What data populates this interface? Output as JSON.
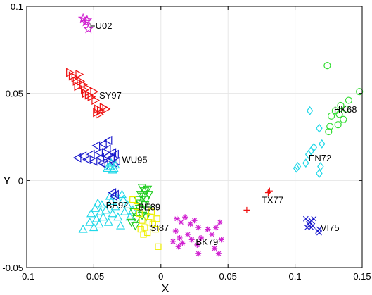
{
  "chart_data": {
    "type": "scatter",
    "title": "",
    "xlabel": "X",
    "ylabel": "Y",
    "xlim": [
      -0.1,
      0.15
    ],
    "ylim": [
      -0.05,
      0.1
    ],
    "xticks": [
      -0.1,
      -0.05,
      0,
      0.05,
      0.1,
      0.15
    ],
    "yticks": [
      -0.05,
      0,
      0.05,
      0.1
    ],
    "xtick_labels": [
      "-0.1",
      "-0.05",
      "0",
      "0.05",
      "0.1",
      "0.15"
    ],
    "ytick_labels": [
      "-0.05",
      "0",
      "0.05",
      "0.1"
    ],
    "grid": true,
    "clusters": [
      {
        "label": "FU02",
        "marker": "star",
        "color": "#d020d0",
        "label_at": [
          -0.053,
          0.089
        ],
        "points": [
          [
            -0.058,
            0.093
          ],
          [
            -0.055,
            0.092
          ],
          [
            -0.056,
            0.091
          ],
          [
            -0.054,
            0.087
          ]
        ]
      },
      {
        "label": "SY97",
        "marker": "triangle-right",
        "color": "#ee1111",
        "label_at": [
          -0.046,
          0.049
        ],
        "points": [
          [
            -0.068,
            0.062
          ],
          [
            -0.066,
            0.06
          ],
          [
            -0.064,
            0.059
          ],
          [
            -0.063,
            0.057
          ],
          [
            -0.061,
            0.061
          ],
          [
            -0.06,
            0.057
          ],
          [
            -0.058,
            0.055
          ],
          [
            -0.062,
            0.054
          ],
          [
            -0.057,
            0.052
          ],
          [
            -0.055,
            0.053
          ],
          [
            -0.056,
            0.05
          ],
          [
            -0.054,
            0.049
          ],
          [
            -0.052,
            0.048
          ],
          [
            -0.05,
            0.051
          ],
          [
            -0.049,
            0.046
          ],
          [
            -0.047,
            0.041
          ],
          [
            -0.045,
            0.04
          ],
          [
            -0.043,
            0.042
          ],
          [
            -0.048,
            0.039
          ],
          [
            -0.046,
            0.038
          ],
          [
            -0.041,
            0.041
          ]
        ]
      },
      {
        "label": "WU95",
        "marker": "triangle-left",
        "color": "#1a1acc",
        "label_at": [
          -0.029,
          0.012
        ],
        "points": [
          [
            -0.062,
            0.013
          ],
          [
            -0.058,
            0.014
          ],
          [
            -0.055,
            0.012
          ],
          [
            -0.052,
            0.015
          ],
          [
            -0.05,
            0.011
          ],
          [
            -0.048,
            0.02
          ],
          [
            -0.046,
            0.016
          ],
          [
            -0.045,
            0.013
          ],
          [
            -0.043,
            0.021
          ],
          [
            -0.042,
            0.009
          ],
          [
            -0.04,
            0.014
          ],
          [
            -0.039,
            0.023
          ],
          [
            -0.038,
            0.012
          ],
          [
            -0.036,
            0.016
          ],
          [
            -0.035,
            0.01
          ],
          [
            -0.034,
            0.015
          ],
          [
            -0.033,
            0.011
          ],
          [
            -0.04,
            0.018
          ],
          [
            -0.044,
            0.01
          ],
          [
            -0.037,
            0.013
          ]
        ]
      },
      {
        "label": "",
        "marker": "triangle-up",
        "color": "#22d8e8",
        "label_at": null,
        "points": [
          [
            -0.04,
            0.007
          ],
          [
            -0.038,
            0.008
          ],
          [
            -0.036,
            0.006
          ],
          [
            -0.034,
            0.009
          ],
          [
            -0.037,
            0.01
          ],
          [
            -0.035,
            0.007
          ]
        ]
      },
      {
        "label": "BE92",
        "marker": "triangle-up",
        "color": "#22d8e8",
        "label_at": [
          -0.041,
          -0.014
        ],
        "points": [
          [
            -0.058,
            -0.028
          ],
          [
            -0.053,
            -0.024
          ],
          [
            -0.05,
            -0.027
          ],
          [
            -0.048,
            -0.022
          ],
          [
            -0.046,
            -0.025
          ],
          [
            -0.052,
            -0.019
          ],
          [
            -0.049,
            -0.016
          ],
          [
            -0.047,
            -0.013
          ],
          [
            -0.045,
            -0.018
          ],
          [
            -0.043,
            -0.021
          ],
          [
            -0.041,
            -0.017
          ],
          [
            -0.039,
            -0.024
          ],
          [
            -0.037,
            -0.012
          ],
          [
            -0.036,
            -0.019
          ],
          [
            -0.034,
            -0.015
          ],
          [
            -0.032,
            -0.021
          ],
          [
            -0.03,
            -0.026
          ],
          [
            -0.028,
            -0.011
          ],
          [
            -0.027,
            -0.018
          ],
          [
            -0.025,
            -0.014
          ],
          [
            -0.023,
            -0.021
          ],
          [
            -0.021,
            -0.017
          ],
          [
            -0.044,
            -0.014
          ],
          [
            -0.033,
            -0.01
          ],
          [
            -0.038,
            -0.009
          ],
          [
            -0.029,
            -0.008
          ]
        ]
      },
      {
        "label": "",
        "marker": "triangle-left",
        "color": "#1a1acc",
        "label_at": null,
        "points": [
          [
            -0.036,
            -0.007
          ],
          [
            -0.035,
            -0.009
          ],
          [
            -0.034,
            -0.008
          ]
        ]
      },
      {
        "label": "BE89",
        "marker": "triangle-down",
        "color": "#22cc22",
        "label_at": [
          -0.017,
          -0.015
        ],
        "points": [
          [
            -0.014,
            -0.004
          ],
          [
            -0.012,
            -0.006
          ],
          [
            -0.01,
            -0.005
          ],
          [
            -0.013,
            -0.009
          ],
          [
            -0.011,
            -0.011
          ],
          [
            -0.009,
            -0.008
          ],
          [
            -0.012,
            -0.014
          ],
          [
            -0.01,
            -0.017
          ],
          [
            -0.014,
            -0.02
          ],
          [
            -0.016,
            -0.016
          ],
          [
            -0.018,
            -0.022
          ],
          [
            -0.02,
            -0.018
          ],
          [
            -0.022,
            -0.024
          ],
          [
            -0.019,
            -0.026
          ],
          [
            -0.016,
            -0.013
          ],
          [
            -0.011,
            -0.021
          ],
          [
            -0.015,
            -0.008
          ],
          [
            -0.017,
            -0.011
          ]
        ]
      },
      {
        "label": "SI87",
        "marker": "square",
        "color": "#eeee00",
        "label_at": [
          -0.008,
          -0.027
        ],
        "points": [
          [
            -0.021,
            -0.011
          ],
          [
            -0.018,
            -0.015
          ],
          [
            -0.016,
            -0.019
          ],
          [
            -0.014,
            -0.023
          ],
          [
            -0.012,
            -0.027
          ],
          [
            -0.01,
            -0.03
          ],
          [
            -0.013,
            -0.031
          ],
          [
            -0.008,
            -0.021
          ],
          [
            -0.006,
            -0.025
          ],
          [
            -0.004,
            -0.028
          ],
          [
            -0.015,
            -0.028
          ],
          [
            -0.007,
            -0.018
          ],
          [
            -0.003,
            -0.022
          ],
          [
            -0.002,
            -0.038
          ],
          [
            -0.009,
            -0.024
          ]
        ]
      },
      {
        "label": "BK79",
        "marker": "asterisk",
        "color": "#d020d0",
        "label_at": [
          0.026,
          -0.035
        ],
        "points": [
          [
            0.012,
            -0.022
          ],
          [
            0.015,
            -0.024
          ],
          [
            0.018,
            -0.021
          ],
          [
            0.022,
            -0.025
          ],
          [
            0.025,
            -0.023
          ],
          [
            0.028,
            -0.027
          ],
          [
            0.011,
            -0.029
          ],
          [
            0.014,
            -0.033
          ],
          [
            0.016,
            -0.036
          ],
          [
            0.013,
            -0.038
          ],
          [
            0.02,
            -0.031
          ],
          [
            0.023,
            -0.034
          ],
          [
            0.027,
            -0.037
          ],
          [
            0.03,
            -0.033
          ],
          [
            0.035,
            -0.028
          ],
          [
            0.038,
            -0.031
          ],
          [
            0.041,
            -0.027
          ],
          [
            0.044,
            -0.024
          ],
          [
            0.04,
            -0.039
          ],
          [
            0.043,
            -0.042
          ],
          [
            0.028,
            -0.042
          ],
          [
            0.045,
            -0.034
          ],
          [
            0.009,
            -0.035
          ]
        ]
      },
      {
        "label": "TX77",
        "marker": "plus",
        "color": "#ee1111",
        "label_at": [
          0.075,
          -0.011
        ],
        "points": [
          [
            0.064,
            -0.017
          ],
          [
            0.08,
            -0.007
          ],
          [
            0.081,
            -0.006
          ]
        ]
      },
      {
        "label": "VI75",
        "marker": "x",
        "color": "#1a1acc",
        "label_at": [
          0.119,
          -0.027
        ],
        "points": [
          [
            0.108,
            -0.022
          ],
          [
            0.11,
            -0.025
          ],
          [
            0.112,
            -0.023
          ],
          [
            0.114,
            -0.022
          ],
          [
            0.109,
            -0.027
          ],
          [
            0.112,
            -0.027
          ],
          [
            0.113,
            -0.026
          ],
          [
            0.111,
            -0.024
          ],
          [
            0.117,
            -0.029
          ],
          [
            0.118,
            -0.03
          ],
          [
            0.118,
            -0.028
          ]
        ]
      },
      {
        "label": "HK68",
        "marker": "circle",
        "color": "#33dd33",
        "label_at": [
          0.129,
          0.041
        ],
        "points": [
          [
            0.124,
            0.066
          ],
          [
            0.148,
            0.051
          ],
          [
            0.14,
            0.046
          ],
          [
            0.134,
            0.043
          ],
          [
            0.13,
            0.04
          ],
          [
            0.127,
            0.037
          ],
          [
            0.136,
            0.035
          ],
          [
            0.132,
            0.032
          ],
          [
            0.126,
            0.031
          ],
          [
            0.125,
            0.028
          ],
          [
            0.138,
            0.041
          ],
          [
            0.133,
            0.038
          ]
        ]
      },
      {
        "label": "EN72",
        "marker": "diamond",
        "color": "#22d8e8",
        "label_at": [
          0.11,
          0.013
        ],
        "points": [
          [
            0.111,
            0.04
          ],
          [
            0.118,
            0.03
          ],
          [
            0.12,
            0.021
          ],
          [
            0.114,
            0.019
          ],
          [
            0.112,
            0.017
          ],
          [
            0.11,
            0.015
          ],
          [
            0.108,
            0.01
          ],
          [
            0.102,
            0.008
          ],
          [
            0.101,
            0.007
          ],
          [
            0.119,
            0.008
          ],
          [
            0.118,
            0.004
          ]
        ]
      }
    ]
  }
}
